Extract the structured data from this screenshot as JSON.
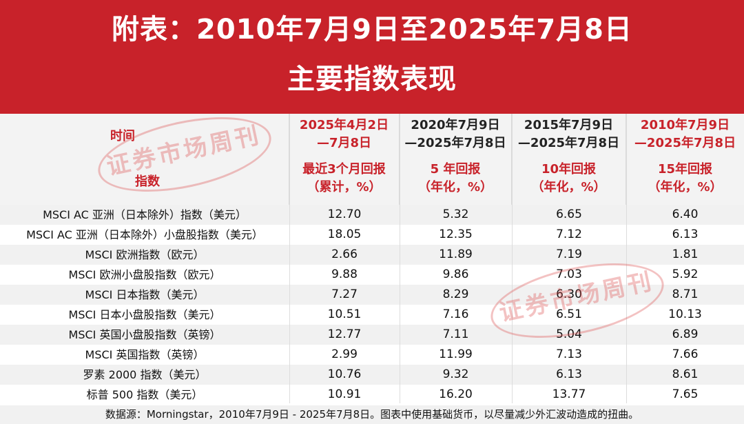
{
  "banner": {
    "line1": "附表：2010年7月9日至2025年7月8日",
    "line2": "主要指数表现"
  },
  "header": {
    "label_time": "时间",
    "label_index": "指数",
    "columns": [
      {
        "period_a": "2025年4月2日",
        "period_b": "—7月8日",
        "metric_a": "最近3个月回报",
        "metric_b": "（累计，%）"
      },
      {
        "period_a": "2020年7月9日",
        "period_b": "—2025年7月8日",
        "metric_a": "5 年回报",
        "metric_b": "（年化，%）"
      },
      {
        "period_a": "2015年7月9日",
        "period_b": "—2025年7月8日",
        "metric_a": "10年回报",
        "metric_b": "（年化，%）"
      },
      {
        "period_a": "2010年7月9日",
        "period_b": "—2025年7月8日",
        "metric_a": "15年回报",
        "metric_b": "（年化，%）"
      }
    ]
  },
  "rows": [
    {
      "name": "MSCI AC 亚洲（日本除外）指数（美元）",
      "v": [
        "12.70",
        "5.32",
        "6.65",
        "6.40"
      ]
    },
    {
      "name": "MSCI AC 亚洲（日本除外）小盘股指数（美元）",
      "v": [
        "18.05",
        "12.35",
        "7.12",
        "6.13"
      ]
    },
    {
      "name": "MSCI 欧洲指数（欧元）",
      "v": [
        "2.66",
        "11.89",
        "7.19",
        "1.81"
      ]
    },
    {
      "name": "MSCI 欧洲小盘股指数（欧元）",
      "v": [
        "9.88",
        "9.86",
        "7.03",
        "5.92"
      ]
    },
    {
      "name": "MSCI 日本指数（美元）",
      "v": [
        "7.27",
        "8.29",
        "6.30",
        "8.71"
      ]
    },
    {
      "name": "MSCI 日本小盘股指数（美元）",
      "v": [
        "10.51",
        "7.16",
        "6.51",
        "10.13"
      ]
    },
    {
      "name": "MSCI 英国小盘股指数（英镑）",
      "v": [
        "12.77",
        "7.11",
        "5.04",
        "6.89"
      ]
    },
    {
      "name": "MSCI 英国指数（英镑）",
      "v": [
        "2.99",
        "11.99",
        "7.13",
        "7.66"
      ]
    },
    {
      "name": "罗素 2000 指数（美元）",
      "v": [
        "10.76",
        "9.32",
        "6.13",
        "8.61"
      ]
    },
    {
      "name": "标普 500 指数（美元）",
      "v": [
        "10.91",
        "16.20",
        "13.77",
        "7.65"
      ]
    }
  ],
  "footer": "数据源：Morningstar，2010年7月9日 - 2025年7月8日。图表中使用基础货币，以尽量减少外汇波动造成的扭曲。",
  "watermark": {
    "text": "证券市场周刊"
  },
  "colors": {
    "banner": "#c8222a",
    "accent_text": "#c8222a",
    "row_shade": "#f1f1f1"
  }
}
